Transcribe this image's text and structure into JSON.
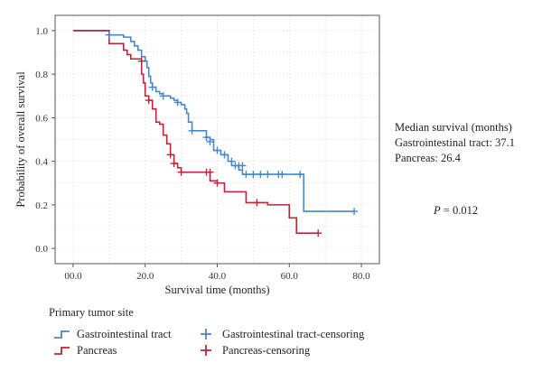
{
  "chart_data": {
    "type": "line",
    "subtype": "kaplan-meier-step",
    "xlabel": "Survival time (months)",
    "ylabel": "Probability of overall survival",
    "xlim": [
      -5,
      85
    ],
    "ylim": [
      -0.07,
      1.07
    ],
    "xticks": [
      0,
      20,
      40,
      60,
      80
    ],
    "xtick_labels": [
      "00.0",
      "20.0",
      "40.0",
      "60.0",
      "80.0"
    ],
    "yticks": [
      0.0,
      0.2,
      0.4,
      0.6,
      0.8,
      1.0
    ],
    "ytick_labels": [
      "0.0",
      "0.2",
      "0.4",
      "0.6",
      "0.8",
      "1.0"
    ],
    "grid": true,
    "legend_position": "bottom",
    "series": [
      {
        "name": "Gastrointestinal tract",
        "color": "#4a86c8",
        "steps": [
          [
            0,
            1.0
          ],
          [
            10,
            0.98
          ],
          [
            14,
            0.97
          ],
          [
            16,
            0.95
          ],
          [
            17,
            0.93
          ],
          [
            18,
            0.91
          ],
          [
            19,
            0.88
          ],
          [
            20,
            0.86
          ],
          [
            20.5,
            0.83
          ],
          [
            21,
            0.79
          ],
          [
            21.5,
            0.76
          ],
          [
            22,
            0.74
          ],
          [
            23,
            0.72
          ],
          [
            24,
            0.71
          ],
          [
            25,
            0.7
          ],
          [
            27,
            0.69
          ],
          [
            28,
            0.68
          ],
          [
            29,
            0.67
          ],
          [
            30,
            0.66
          ],
          [
            31,
            0.64
          ],
          [
            31.5,
            0.62
          ],
          [
            32,
            0.58
          ],
          [
            33,
            0.54
          ],
          [
            37,
            0.51
          ],
          [
            38,
            0.5
          ],
          [
            39,
            0.45
          ],
          [
            41,
            0.43
          ],
          [
            43,
            0.4
          ],
          [
            44,
            0.38
          ],
          [
            46,
            0.36
          ],
          [
            47,
            0.34
          ],
          [
            64,
            0.17
          ],
          [
            78,
            0.17
          ]
        ],
        "censored": [
          [
            10,
            0.98
          ],
          [
            22,
            0.74
          ],
          [
            25,
            0.7
          ],
          [
            29,
            0.67
          ],
          [
            33,
            0.54
          ],
          [
            37,
            0.51
          ],
          [
            38,
            0.49
          ],
          [
            40,
            0.45
          ],
          [
            42,
            0.43
          ],
          [
            44,
            0.4
          ],
          [
            45,
            0.38
          ],
          [
            46,
            0.38
          ],
          [
            47,
            0.38
          ],
          [
            48,
            0.34
          ],
          [
            50,
            0.34
          ],
          [
            52,
            0.34
          ],
          [
            54,
            0.34
          ],
          [
            57,
            0.34
          ],
          [
            58,
            0.34
          ],
          [
            63,
            0.34
          ],
          [
            78,
            0.17
          ]
        ]
      },
      {
        "name": "Pancreas",
        "color": "#b5283a",
        "steps": [
          [
            0,
            1.0
          ],
          [
            10,
            0.94
          ],
          [
            14,
            0.91
          ],
          [
            15,
            0.89
          ],
          [
            16,
            0.87
          ],
          [
            19,
            0.8
          ],
          [
            19.5,
            0.76
          ],
          [
            20,
            0.7
          ],
          [
            21,
            0.68
          ],
          [
            22,
            0.64
          ],
          [
            23,
            0.58
          ],
          [
            24,
            0.57
          ],
          [
            25,
            0.52
          ],
          [
            26,
            0.48
          ],
          [
            27,
            0.43
          ],
          [
            28,
            0.39
          ],
          [
            29,
            0.37
          ],
          [
            30,
            0.35
          ],
          [
            38,
            0.31
          ],
          [
            39,
            0.31
          ],
          [
            40,
            0.3
          ],
          [
            42,
            0.26
          ],
          [
            48,
            0.21
          ],
          [
            54,
            0.2
          ],
          [
            60,
            0.14
          ],
          [
            62,
            0.07
          ],
          [
            68,
            0.07
          ]
        ],
        "censored": [
          [
            19,
            0.86
          ],
          [
            21,
            0.68
          ],
          [
            27,
            0.43
          ],
          [
            28,
            0.39
          ],
          [
            30,
            0.35
          ],
          [
            37,
            0.35
          ],
          [
            38,
            0.35
          ],
          [
            40,
            0.3
          ],
          [
            51,
            0.21
          ],
          [
            68,
            0.07
          ]
        ]
      }
    ],
    "legend_title": "Primary tumor site",
    "legend_entries": [
      {
        "label": "Gastrointestinal tract",
        "series": 0,
        "kind": "line"
      },
      {
        "label": "Gastrointestinal tract-censoring",
        "series": 0,
        "kind": "censor"
      },
      {
        "label": "Pancreas",
        "series": 1,
        "kind": "line"
      },
      {
        "label": "Pancreas-censoring",
        "series": 1,
        "kind": "censor"
      }
    ],
    "annotations": {
      "median_title": "Median survival (months)",
      "median_lines": [
        "Gastrointestinal tract: 37.1",
        "Pancreas: 26.4"
      ],
      "p_value_label": "P",
      "p_value_text": " = 0.012"
    }
  }
}
